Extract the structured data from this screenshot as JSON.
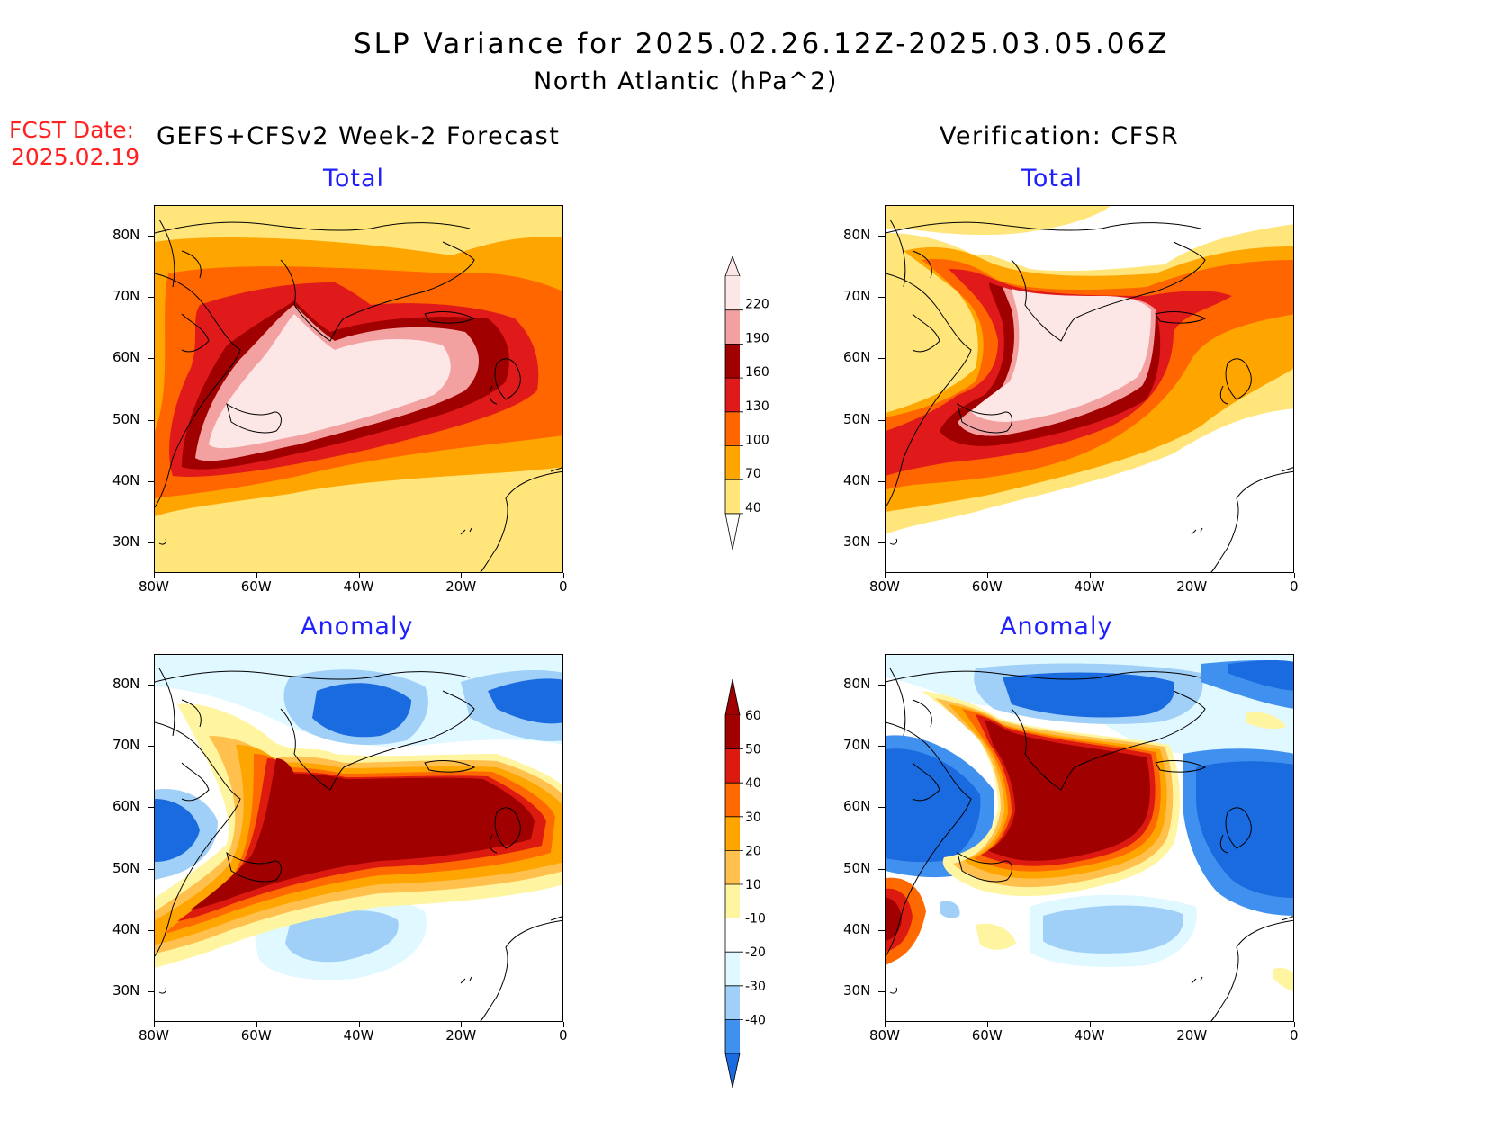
{
  "header": {
    "title": "SLP Variance for 2025.02.26.12Z-2025.03.05.06Z",
    "subtitle": "North Atlantic (hPa^2)",
    "fcst_line1": "FCST Date:",
    "fcst_line2": "2025.02.19",
    "left_heading": "GEFS+CFSv2 Week-2 Forecast",
    "right_heading": "Verification: CFSR"
  },
  "panels": {
    "tl": {
      "title": "Total"
    },
    "tr": {
      "title": "Total"
    },
    "bl": {
      "title": "Anomaly"
    },
    "br": {
      "title": "Anomaly"
    }
  },
  "axes": {
    "lat_labels": [
      "80N",
      "70N",
      "60N",
      "50N",
      "40N",
      "30N"
    ],
    "lon_labels": [
      "80W",
      "60W",
      "40W",
      "20W",
      "0"
    ],
    "lat_range": [
      25,
      85
    ],
    "lon_range": [
      -80,
      0
    ]
  },
  "colorbar_total": {
    "labels": [
      "220",
      "190",
      "160",
      "130",
      "100",
      "70",
      "40"
    ],
    "colors": [
      "#fde6e6",
      "#f2a0a0",
      "#a00000",
      "#e01a1a",
      "#ff6600",
      "#ffa500",
      "#ffe57a"
    ]
  },
  "colorbar_anomaly": {
    "labels": [
      "60",
      "50",
      "40",
      "30",
      "20",
      "10",
      "-10",
      "-20",
      "-30",
      "-40"
    ],
    "colors": [
      "#a00000",
      "#dd1a10",
      "#ff6a00",
      "#ffa500",
      "#ffc04d",
      "#fff5a0",
      "#ffffff",
      "#e0f8ff",
      "#a0d0f8",
      "#4090f0",
      "#1a6ae0"
    ]
  },
  "colors": {
    "land_outline": "#000000",
    "title_red": "#ff2020",
    "panel_title_blue": "#2020ff"
  }
}
